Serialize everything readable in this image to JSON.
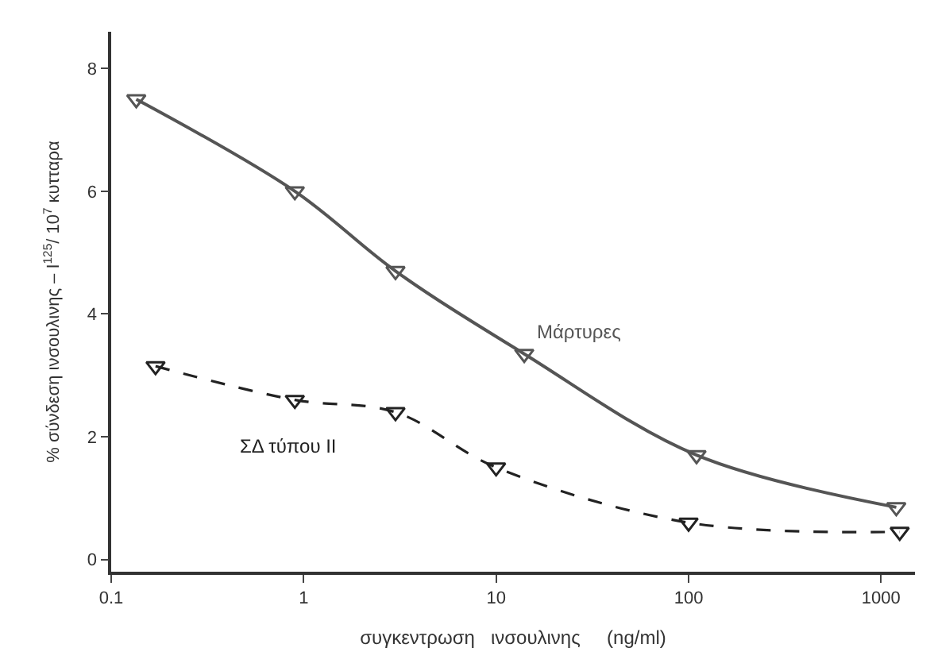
{
  "chart_data": {
    "type": "line",
    "xlabel": "συγκεντρωση   ινσουλινης     (ng/ml)",
    "ylabel": "% σύνδεση ινσουλινης – I$^{125}$/ 10$^{7}$ κυτταρα",
    "log": "x",
    "xlim": [
      0.1,
      1500
    ],
    "xticks": [
      0.1,
      1,
      10,
      100,
      1000
    ],
    "ylim": [
      -0.2,
      8.6
    ],
    "yticks": [
      0,
      2,
      4,
      6,
      8
    ],
    "marker": "triangle",
    "series": [
      {
        "name": "Μάρτυρες",
        "color": "#555555",
        "line_style": "solid",
        "x": [
          0.135,
          0.9,
          3,
          14,
          110,
          1200
        ],
        "values": [
          7.5,
          6.0,
          4.7,
          3.35,
          1.7,
          0.85
        ]
      },
      {
        "name": "ΣΔ τύπου II",
        "color": "#222222",
        "line_style": "dashed",
        "x": [
          0.17,
          0.9,
          3,
          10,
          100,
          1250
        ],
        "values": [
          3.15,
          2.6,
          2.4,
          1.5,
          0.6,
          0.45
        ]
      }
    ]
  }
}
